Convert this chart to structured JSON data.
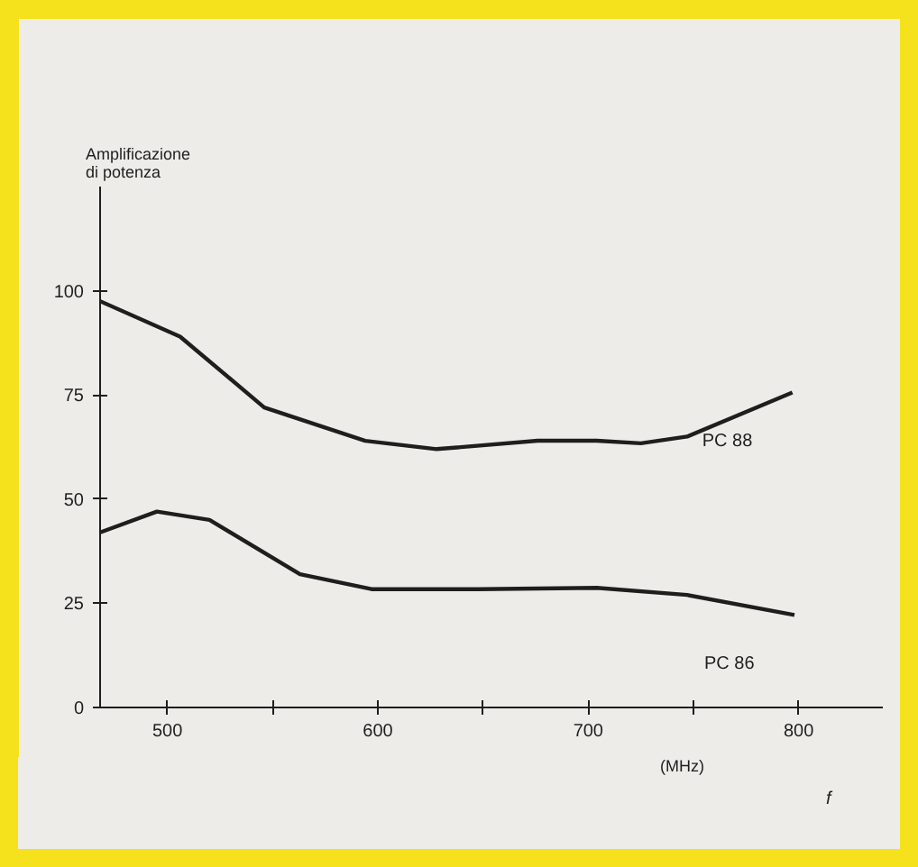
{
  "chart_data": {
    "type": "line",
    "ylabel": "Amplificazione\ndi potenza",
    "xlabel": "(MHz)",
    "annotations": [
      "f"
    ],
    "xlim": [
      468,
      840
    ],
    "ylim": [
      0,
      125
    ],
    "xticks": [
      500,
      {
        "value": 550,
        "label": null
      },
      600,
      {
        "value": 650,
        "label": null
      },
      700,
      {
        "value": 750,
        "label": null
      },
      800
    ],
    "yticks": [
      0,
      25,
      50,
      75,
      100
    ],
    "grid": false,
    "marker": "none",
    "line_style": "solid",
    "series": [
      {
        "name": "PC 88",
        "color": "#1e1e1e",
        "x": [
          468,
          506,
          546,
          594,
          628,
          676,
          704,
          725,
          747,
          797
        ],
        "values": [
          97.5,
          89,
          72,
          64,
          62,
          64,
          64,
          63.4,
          65,
          75.6
        ]
      },
      {
        "name": "PC 86",
        "color": "#1e1e1e",
        "x": [
          468,
          495,
          520,
          563,
          597,
          648,
          704,
          747,
          798
        ],
        "values": [
          42,
          47,
          45,
          32,
          28.4,
          28.4,
          28.7,
          27,
          22.2
        ]
      }
    ]
  }
}
